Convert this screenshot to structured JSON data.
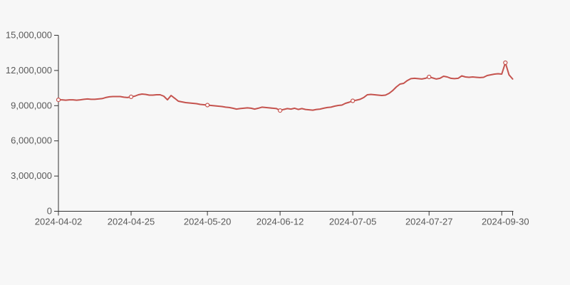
{
  "page": {
    "background_color": "#f7f7f7"
  },
  "chart_data": {
    "type": "line",
    "title": "",
    "xlabel": "",
    "ylabel": "",
    "legend": "none",
    "grid": false,
    "ylim": [
      0,
      15000000
    ],
    "y_ticks": [
      0,
      3000000,
      6000000,
      9000000,
      12000000,
      15000000
    ],
    "x_tick_labels": [
      "2024-04-02",
      "2024-04-25",
      "2024-05-20",
      "2024-06-12",
      "2024-07-05",
      "2024-07-27",
      "2024-09-30"
    ],
    "x_label_indices": [
      0,
      20,
      41,
      61,
      81,
      102,
      123
    ],
    "x_axis_tick_indices": [
      0,
      20,
      41,
      61,
      81,
      102,
      122,
      125
    ],
    "axis_color": "#333333",
    "label_color": "#595959",
    "series": [
      {
        "name": "value",
        "color": "#c5534e",
        "marker_fill": "#ffffff",
        "marker_indices": [
          0,
          20,
          41,
          61,
          81,
          102,
          123
        ],
        "values": [
          9500000,
          9500000,
          9470000,
          9500000,
          9500000,
          9470000,
          9500000,
          9540000,
          9570000,
          9540000,
          9540000,
          9570000,
          9600000,
          9690000,
          9750000,
          9780000,
          9780000,
          9780000,
          9720000,
          9690000,
          9750000,
          9810000,
          9930000,
          9990000,
          9960000,
          9900000,
          9900000,
          9930000,
          9930000,
          9810000,
          9500000,
          9870000,
          9630000,
          9380000,
          9320000,
          9260000,
          9230000,
          9200000,
          9170000,
          9110000,
          9080000,
          9050000,
          9020000,
          8990000,
          8960000,
          8930000,
          8870000,
          8840000,
          8780000,
          8710000,
          8750000,
          8780000,
          8810000,
          8780000,
          8710000,
          8780000,
          8870000,
          8840000,
          8810000,
          8780000,
          8750000,
          8590000,
          8680000,
          8750000,
          8710000,
          8780000,
          8680000,
          8750000,
          8680000,
          8650000,
          8620000,
          8680000,
          8710000,
          8780000,
          8840000,
          8870000,
          8960000,
          9020000,
          9050000,
          9200000,
          9290000,
          9410000,
          9470000,
          9540000,
          9690000,
          9930000,
          9960000,
          9930000,
          9900000,
          9870000,
          9900000,
          10050000,
          10290000,
          10600000,
          10840000,
          10900000,
          11140000,
          11300000,
          11330000,
          11300000,
          11270000,
          11330000,
          11450000,
          11360000,
          11270000,
          11330000,
          11510000,
          11450000,
          11330000,
          11300000,
          11330000,
          11540000,
          11450000,
          11420000,
          11450000,
          11420000,
          11390000,
          11420000,
          11570000,
          11630000,
          11690000,
          11720000,
          11690000,
          12660000,
          11630000,
          11270000
        ]
      }
    ]
  }
}
